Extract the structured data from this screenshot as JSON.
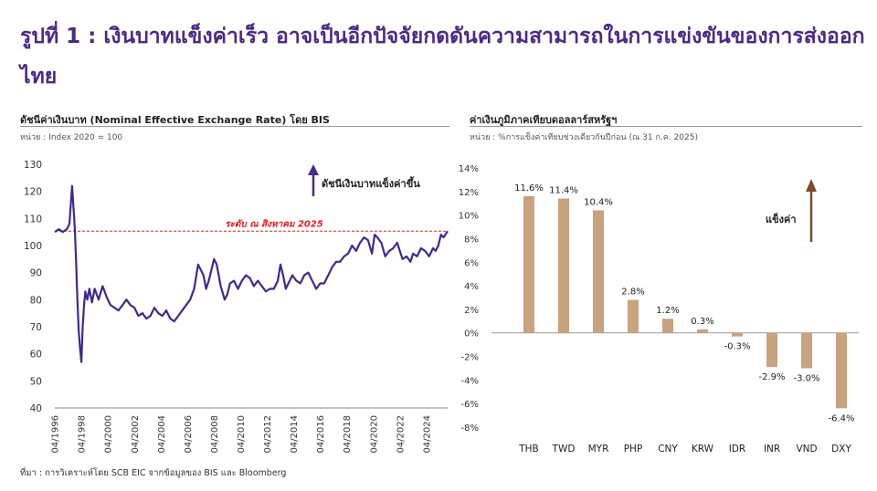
{
  "page": {
    "title": "รูปที่ 1 : เงินบาทแข็งค่าเร็ว อาจเป็นอีกปัจจัยกดดันความสามารถในการแข่งขันของการส่งออกไทย",
    "source": "ที่มา : การวิเคราะห์โดย SCB EIC จากข้อมูลของ BIS และ Bloomberg"
  },
  "colors": {
    "title": "#4b2a85",
    "line": "#3f2a8c",
    "bar": "#c9a27e",
    "ref_line": "#e02020",
    "arrow_left": "#4b2a85",
    "arrow_right": "#7a4a2a"
  },
  "left_chart": {
    "title": "ดัชนีค่าเงินบาท (Nominal Effective Exchange Rate) โดย BIS",
    "subtitle": "หน่วย : Index 2020 = 100",
    "annotation": "ดัชนีเงินบาทแข็งค่าขึ้น",
    "ref_label": "ระดับ ณ สิงหาคม 2025"
  },
  "right_chart": {
    "title": "ค่าเงินภูมิภาคเทียบดอลลาร์สหรัฐฯ",
    "subtitle": "หน่วย : %การแข็งค่าเทียบช่วงเดียวกันปีก่อน (ณ 31 ก.ค. 2025)",
    "annotation": "แข็งค่า"
  },
  "chart_data": [
    {
      "type": "line",
      "xlabel": "",
      "ylabel": "",
      "ylim": [
        40,
        130
      ],
      "yticks": [
        40,
        50,
        60,
        70,
        80,
        90,
        100,
        110,
        120,
        130
      ],
      "xticks": [
        "04/1996",
        "04/1998",
        "04/2000",
        "04/2002",
        "04/2004",
        "04/2006",
        "04/2008",
        "04/2010",
        "04/2012",
        "04/2014",
        "04/2016",
        "04/2018",
        "04/2020",
        "04/2022",
        "04/2024"
      ],
      "xlim": [
        1996.0,
        2025.6
      ],
      "reference_line": {
        "value": 105.3,
        "label": "ระดับ ณ สิงหาคม 2025"
      },
      "series": [
        {
          "x": [
            1996.0,
            1996.3,
            1996.6,
            1996.9,
            1997.1,
            1997.3,
            1997.5,
            1997.6,
            1997.7,
            1997.8,
            1997.9,
            1998.0,
            1998.1,
            1998.2,
            1998.3,
            1998.45,
            1998.6,
            1998.8,
            1999.0,
            1999.3,
            1999.6,
            1999.9,
            2000.2,
            2000.5,
            2000.8,
            2001.1,
            2001.4,
            2001.7,
            2002.0,
            2002.3,
            2002.6,
            2002.9,
            2003.2,
            2003.5,
            2003.8,
            2004.1,
            2004.4,
            2004.7,
            2005.0,
            2005.3,
            2005.6,
            2005.9,
            2006.2,
            2006.5,
            2006.8,
            2007.0,
            2007.2,
            2007.4,
            2007.6,
            2007.8,
            2008.0,
            2008.2,
            2008.5,
            2008.8,
            2009.0,
            2009.2,
            2009.5,
            2009.8,
            2010.1,
            2010.4,
            2010.7,
            2011.0,
            2011.3,
            2011.6,
            2011.9,
            2012.2,
            2012.5,
            2012.8,
            2013.0,
            2013.2,
            2013.4,
            2013.6,
            2013.9,
            2014.2,
            2014.5,
            2014.8,
            2015.1,
            2015.4,
            2015.7,
            2016.0,
            2016.3,
            2016.6,
            2016.9,
            2017.2,
            2017.5,
            2017.8,
            2018.1,
            2018.4,
            2018.7,
            2019.0,
            2019.3,
            2019.6,
            2019.9,
            2020.1,
            2020.3,
            2020.6,
            2020.9,
            2021.2,
            2021.5,
            2021.8,
            2022.0,
            2022.2,
            2022.5,
            2022.8,
            2023.0,
            2023.3,
            2023.6,
            2023.9,
            2024.2,
            2024.5,
            2024.7,
            2024.9,
            2025.1,
            2025.3,
            2025.6
          ],
          "y": [
            105,
            106,
            105,
            106,
            108,
            122,
            107,
            95,
            80,
            69,
            62,
            57,
            70,
            78,
            83,
            80,
            84,
            79,
            84,
            80,
            85,
            81,
            78,
            77,
            76,
            78,
            80,
            78,
            77,
            74,
            75,
            73,
            74,
            77,
            75,
            74,
            76,
            73,
            72,
            74,
            76,
            78,
            80,
            84,
            93,
            91,
            89,
            84,
            87,
            91,
            95,
            93,
            85,
            80,
            82,
            86,
            87,
            84,
            87,
            89,
            88,
            85,
            87,
            85,
            83,
            84,
            84,
            87,
            93,
            89,
            84,
            86,
            89,
            87,
            86,
            89,
            90,
            87,
            84,
            86,
            86,
            89,
            92,
            94,
            94,
            96,
            97,
            100,
            98,
            101,
            103,
            102,
            97,
            104,
            103,
            101,
            96,
            98,
            99,
            101,
            98,
            95,
            96,
            94,
            97,
            96,
            99,
            98,
            96,
            99,
            98,
            100,
            104,
            103,
            105.3
          ]
        }
      ]
    },
    {
      "type": "bar",
      "ylim": [
        -8,
        14
      ],
      "yticks": [
        -8,
        -6,
        -4,
        -2,
        0,
        2,
        4,
        6,
        8,
        10,
        12,
        14
      ],
      "ytick_suffix": "%",
      "categories": [
        "THB",
        "TWD",
        "MYR",
        "PHP",
        "CNY",
        "KRW",
        "IDR",
        "INR",
        "VND",
        "DXY"
      ],
      "values": [
        11.6,
        11.4,
        10.4,
        2.8,
        1.2,
        0.3,
        -0.3,
        -2.9,
        -3.0,
        -6.4
      ],
      "labels": [
        "11.6%",
        "11.4%",
        "10.4%",
        "2.8%",
        "1.2%",
        "0.3%",
        "-0.3%",
        "-2.9%",
        "-3.0%",
        "-6.4%"
      ]
    }
  ]
}
